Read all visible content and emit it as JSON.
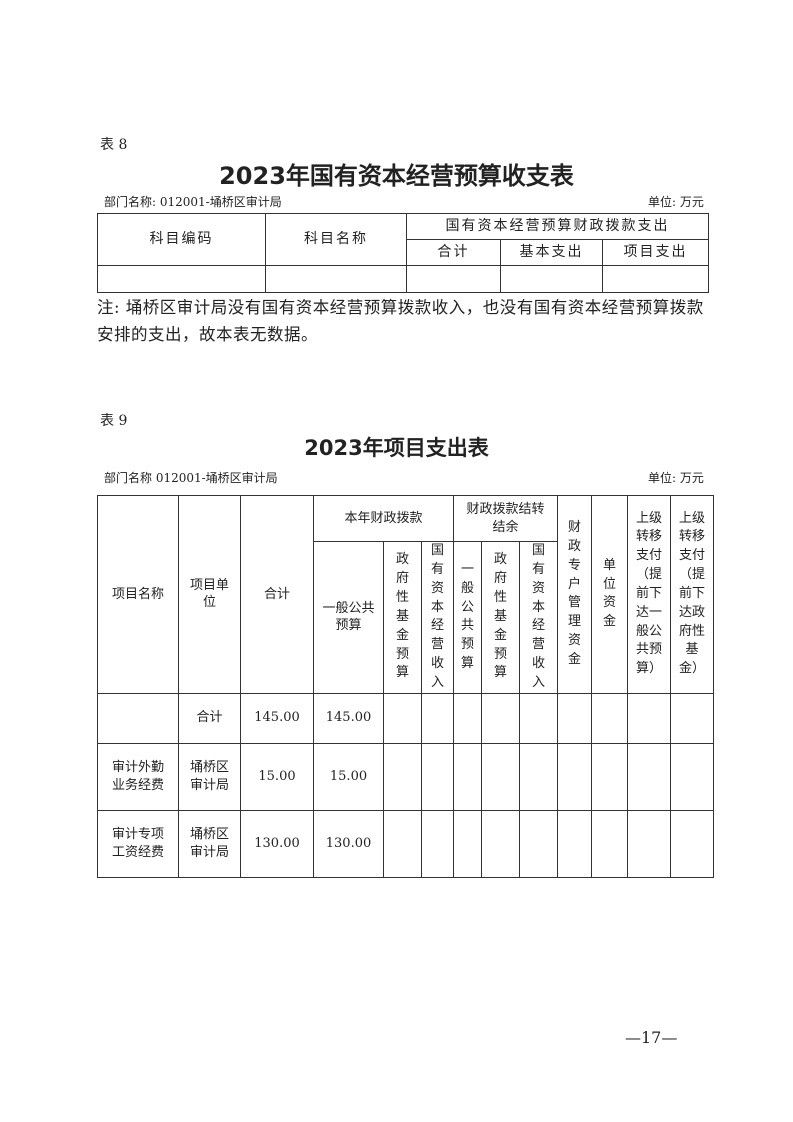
{
  "table8": {
    "label": "表 8",
    "title": "2023年国有资本经营预算收支表",
    "department": "部门名称: 012001-埇桥区审计局",
    "unit": "单位: 万元",
    "headers": {
      "code": "科目编码",
      "name": "科目名称",
      "group": "国有资本经营预算财政拨款支出",
      "total": "合计",
      "basic": "基本支出",
      "project": "项目支出"
    },
    "note": "注: 埇桥区审计局没有国有资本经营预算拨款收入，也没有国有资本经营预算拨款安排的支出，故本表无数据。"
  },
  "table9": {
    "label": "表 9",
    "title": "2023年项目支出表",
    "department": "部门名称 012001-埇桥区审计局",
    "unit": "单位: 万元",
    "headers": {
      "project_name": "项目名称",
      "project_unit": "项目单位",
      "total": "合计",
      "current_group": "本年财政拨款",
      "carry_group": "财政拨款结转结余",
      "general": "一般公共预算",
      "gov_fund": "政府性基金预算",
      "state_capital": "国有资本经营收入",
      "carry_general": "一般公共预算",
      "carry_gov_fund": "政府性基金预算",
      "carry_state_capital": "国有资本经营收入",
      "special_account": "财政专户管理资金",
      "unit_funds": "单位资金",
      "transfer_general": "上级转移支付（提前下达一般公共预算）",
      "transfer_gov_fund": "上级转移支付（提前下达政府性基金）"
    },
    "rows": [
      {
        "name": "",
        "unit": "合计",
        "total": "145.00",
        "general": "145.00"
      },
      {
        "name": "审计外勤业务经费",
        "unit": "埇桥区审计局",
        "total": "15.00",
        "general": "15.00"
      },
      {
        "name": "审计专项工资经费",
        "unit": "埇桥区审计局",
        "total": "130.00",
        "general": "130.00"
      }
    ]
  },
  "page_number": "—17—"
}
